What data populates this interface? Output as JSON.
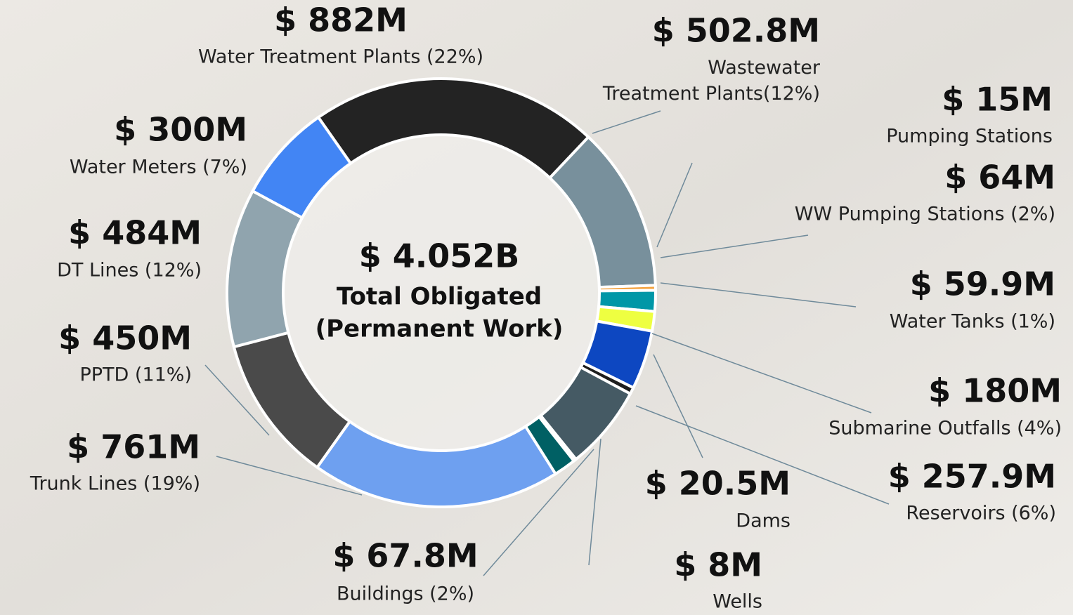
{
  "chart_data": {
    "type": "pie",
    "categories": [
      "Water Treatment Plants (22%)",
      "Wastewater Treatment Plants(12%)",
      "Pumping Stations",
      "WW Pumping Stations (2%)",
      "Water Tanks (1%)",
      "Submarine Outfalls (4%)",
      "Dams",
      "Reservoirs (6%)",
      "Wells",
      "Buildings (2%)",
      "Trunk Lines (19%)",
      "PPTD (11%)",
      "DT Lines (12%)",
      "Water Meters (7%)"
    ],
    "values": [
      882,
      502.8,
      15,
      64,
      59.9,
      180,
      20.5,
      257.9,
      8,
      67.8,
      761,
      450,
      484,
      300
    ],
    "value_labels": [
      "$ 882M",
      "$ 502.8M",
      "$ 15M",
      "$ 64M",
      "$ 59.9M",
      "$ 180M",
      "$ 20.5M",
      "$ 257.9M",
      "$ 8M",
      "$ 67.8M",
      "$ 761M",
      "$ 450M",
      "$ 484M",
      "$ 300M"
    ],
    "colors": [
      "#232323",
      "#78909c",
      "#f4a340",
      "#0097a7",
      "#eeff41",
      "#0d47c1",
      "#1e1e1e",
      "#455a64",
      "#ffffff",
      "#006064",
      "#6ea0f0",
      "#4a4a4a",
      "#90a4ae",
      "#4285f4"
    ],
    "total_label": "$ 4.052B",
    "center_text": [
      "Total Obligated",
      "(Permanent Work)"
    ]
  }
}
